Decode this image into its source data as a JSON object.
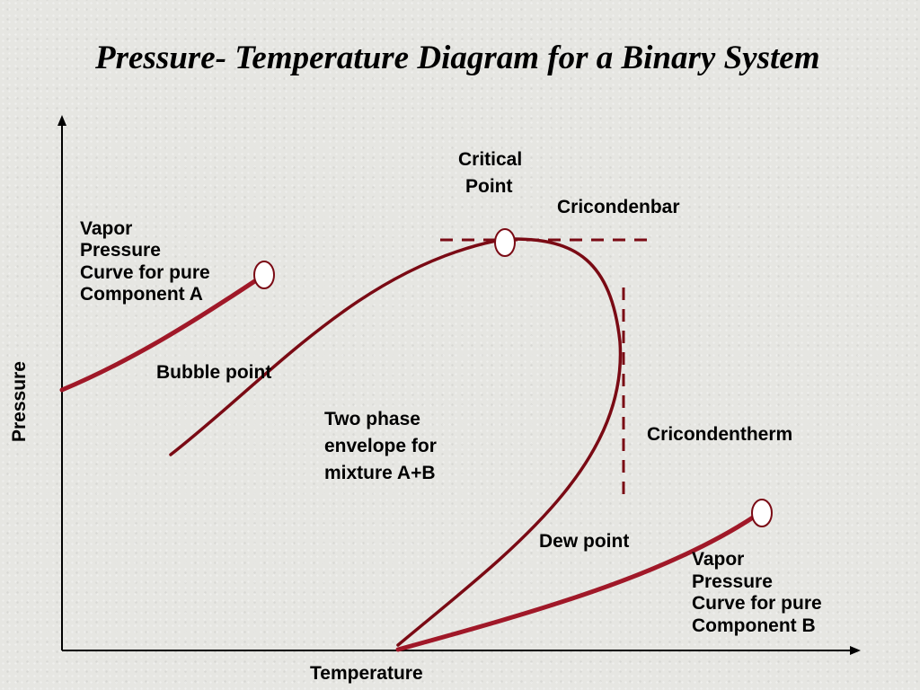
{
  "title": "Pressure- Temperature Diagram for a Binary System",
  "axes": {
    "x_label": "Temperature",
    "y_label": "Pressure"
  },
  "labels": {
    "critical_point": [
      "Critical",
      "Point"
    ],
    "cricondenbar": "Cricondenbar",
    "cricondentherm": "Cricondentherm",
    "bubble_point": "Bubble point",
    "dew_point": "Dew point",
    "two_phase_envelope": [
      "Two phase",
      "envelope for",
      "mixture A+B"
    ],
    "vapor_curve_a": [
      "Vapor",
      "Pressure",
      "Curve for pure",
      "Component A"
    ],
    "vapor_curve_b": [
      "Vapor",
      "Pressure",
      "Curve for pure",
      "Component B"
    ]
  },
  "colors": {
    "vapor_curve": "#a01828",
    "envelope": "#7a0a14",
    "dashed_line": "#7a0a14",
    "axis": "#000000",
    "text": "#000000"
  }
}
